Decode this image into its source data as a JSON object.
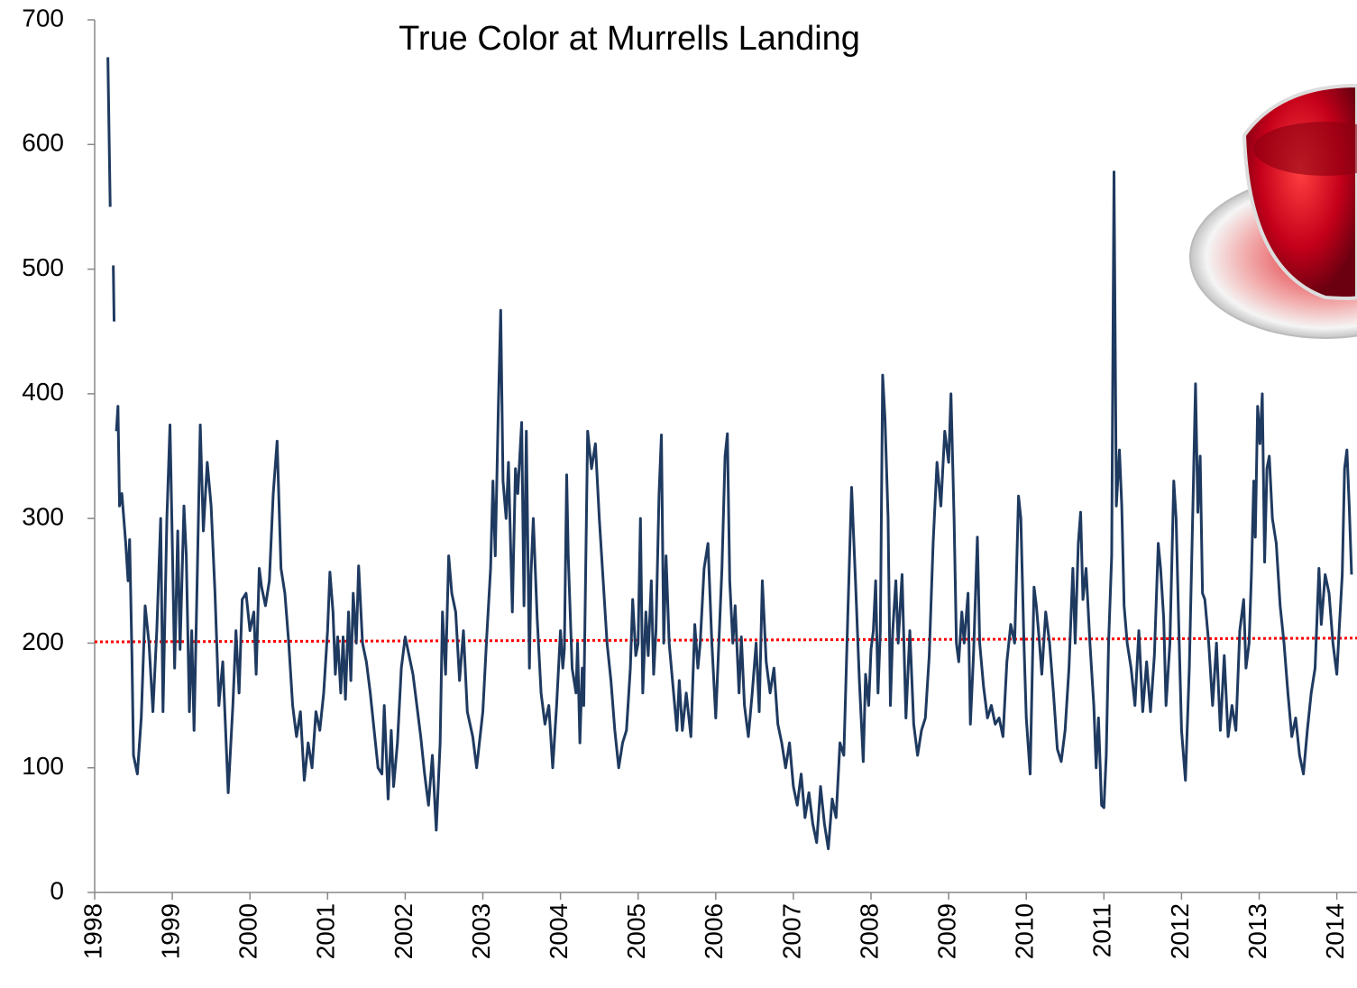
{
  "chart_data": {
    "type": "line",
    "title": "True Color at Murrells Landing",
    "x": [
      1998.17,
      1998.18,
      1998.2,
      1998.22,
      1998.24,
      1998.25,
      1998.26,
      1998.28,
      1998.3,
      1998.32,
      1998.35,
      1998.4,
      1998.43,
      1998.45,
      1998.48,
      1998.5,
      1998.55,
      1998.6,
      1998.65,
      1998.7,
      1998.75,
      1998.8,
      1998.85,
      1998.88,
      1998.93,
      1998.97,
      1999.0,
      1999.03,
      1999.07,
      1999.1,
      1999.15,
      1999.18,
      1999.22,
      1999.25,
      1999.28,
      1999.32,
      1999.36,
      1999.4,
      1999.45,
      1999.5,
      1999.55,
      1999.6,
      1999.65,
      1999.68,
      1999.72,
      1999.78,
      1999.82,
      1999.86,
      1999.9,
      1999.95,
      2000.0,
      2000.05,
      2000.08,
      2000.12,
      2000.15,
      2000.2,
      2000.25,
      2000.3,
      2000.35,
      2000.4,
      2000.45,
      2000.5,
      2000.55,
      2000.6,
      2000.65,
      2000.7,
      2000.75,
      2000.8,
      2000.85,
      2000.9,
      2000.95,
      2001.0,
      2001.03,
      2001.07,
      2001.1,
      2001.13,
      2001.17,
      2001.2,
      2001.23,
      2001.27,
      2001.3,
      2001.33,
      2001.37,
      2001.4,
      2001.45,
      2001.5,
      2001.55,
      2001.6,
      2001.65,
      2001.7,
      2001.73,
      2001.78,
      2001.82,
      2001.85,
      2001.9,
      2001.95,
      2002.0,
      2002.05,
      2002.1,
      2002.15,
      2002.2,
      2002.25,
      2002.3,
      2002.35,
      2002.4,
      2002.45,
      2002.48,
      2002.52,
      2002.56,
      2002.6,
      2002.65,
      2002.7,
      2002.75,
      2002.8,
      2002.87,
      2002.92,
      2003.0,
      2003.05,
      2003.1,
      2003.13,
      2003.16,
      2003.2,
      2003.23,
      2003.26,
      2003.3,
      2003.33,
      2003.38,
      2003.42,
      2003.45,
      2003.5,
      2003.53,
      2003.56,
      2003.6,
      2003.62,
      2003.65,
      2003.7,
      2003.75,
      2003.8,
      2003.85,
      2003.9,
      2003.95,
      2004.0,
      2004.03,
      2004.05,
      2004.08,
      2004.1,
      2004.15,
      2004.2,
      2004.22,
      2004.25,
      2004.28,
      2004.3,
      2004.35,
      2004.4,
      2004.45,
      2004.5,
      2004.55,
      2004.6,
      2004.65,
      2004.7,
      2004.75,
      2004.8,
      2004.85,
      2004.9,
      2004.93,
      2004.97,
      2005.0,
      2005.03,
      2005.06,
      2005.1,
      2005.13,
      2005.17,
      2005.2,
      2005.23,
      2005.27,
      2005.3,
      2005.33,
      2005.36,
      2005.4,
      2005.45,
      2005.5,
      2005.53,
      2005.57,
      2005.62,
      2005.68,
      2005.73,
      2005.77,
      2005.8,
      2005.85,
      2005.9,
      2005.95,
      2006.0,
      2006.04,
      2006.08,
      2006.12,
      2006.15,
      2006.18,
      2006.22,
      2006.25,
      2006.3,
      2006.33,
      2006.37,
      2006.42,
      2006.47,
      2006.52,
      2006.56,
      2006.6,
      2006.65,
      2006.7,
      2006.75,
      2006.8,
      2006.85,
      2006.9,
      2006.95,
      2007.0,
      2007.05,
      2007.1,
      2007.15,
      2007.2,
      2007.25,
      2007.3,
      2007.35,
      2007.4,
      2007.45,
      2007.5,
      2007.55,
      2007.6,
      2007.65,
      2007.7,
      2007.75,
      2007.8,
      2007.85,
      2007.9,
      2007.93,
      2007.97,
      2008.0,
      2008.03,
      2008.06,
      2008.09,
      2008.12,
      2008.15,
      2008.18,
      2008.22,
      2008.25,
      2008.28,
      2008.32,
      2008.35,
      2008.4,
      2008.45,
      2008.5,
      2008.55,
      2008.6,
      2008.65,
      2008.7,
      2008.75,
      2008.8,
      2008.85,
      2008.9,
      2008.95,
      2009.0,
      2009.03,
      2009.07,
      2009.1,
      2009.13,
      2009.17,
      2009.2,
      2009.25,
      2009.28,
      2009.32,
      2009.37,
      2009.4,
      2009.45,
      2009.5,
      2009.55,
      2009.6,
      2009.65,
      2009.7,
      2009.75,
      2009.8,
      2009.85,
      2009.9,
      2009.93,
      2009.97,
      2010.0,
      2010.05,
      2010.1,
      2010.13,
      2010.17,
      2010.2,
      2010.25,
      2010.3,
      2010.35,
      2010.4,
      2010.45,
      2010.5,
      2010.55,
      2010.6,
      2010.63,
      2010.67,
      2010.7,
      2010.73,
      2010.77,
      2010.82,
      2010.87,
      2010.9,
      2010.93,
      2010.97,
      2011.0,
      2011.03,
      2011.06,
      2011.1,
      2011.13,
      2011.16,
      2011.2,
      2011.23,
      2011.26,
      2011.3,
      2011.35,
      2011.4,
      2011.45,
      2011.5,
      2011.55,
      2011.6,
      2011.65,
      2011.7,
      2011.73,
      2011.77,
      2011.8,
      2011.85,
      2011.9,
      2011.93,
      2011.97,
      2012.0,
      2012.05,
      2012.1,
      2012.15,
      2012.18,
      2012.21,
      2012.24,
      2012.27,
      2012.3,
      2012.35,
      2012.4,
      2012.45,
      2012.5,
      2012.55,
      2012.6,
      2012.65,
      2012.7,
      2012.75,
      2012.8,
      2012.83,
      2012.87,
      2012.9,
      2012.93,
      2012.95,
      2012.98,
      2013.01,
      2013.04,
      2013.07,
      2013.1,
      2013.13,
      2013.17,
      2013.22,
      2013.27,
      2013.32,
      2013.37,
      2013.42,
      2013.47,
      2013.52,
      2013.57,
      2013.62,
      2013.67,
      2013.72,
      2013.77,
      2013.8,
      2013.85,
      2013.9,
      2013.95,
      2014.0,
      2014.03,
      2014.07,
      2014.1,
      2014.13,
      2014.16,
      2014.19
    ],
    "series": [
      {
        "color": "#1f3a60",
        "values": [
          670,
          630,
          550,
          null,
          503,
          458,
          null,
          370,
          390,
          310,
          320,
          280,
          250,
          283,
          190,
          110,
          95,
          140,
          230,
          200,
          145,
          210,
          300,
          145,
          300,
          375,
          280,
          180,
          290,
          195,
          310,
          270,
          145,
          210,
          130,
          250,
          375,
          290,
          345,
          310,
          240,
          150,
          185,
          140,
          80,
          150,
          210,
          160,
          235,
          240,
          210,
          225,
          175,
          260,
          245,
          230,
          250,
          320,
          362,
          260,
          240,
          200,
          150,
          125,
          145,
          90,
          120,
          100,
          145,
          130,
          160,
          210,
          257,
          225,
          175,
          205,
          160,
          205,
          155,
          225,
          170,
          240,
          200,
          262,
          200,
          185,
          160,
          130,
          100,
          95,
          150,
          75,
          130,
          85,
          120,
          180,
          205,
          190,
          175,
          150,
          125,
          95,
          70,
          110,
          50,
          120,
          225,
          175,
          270,
          240,
          225,
          170,
          210,
          145,
          125,
          100,
          145,
          205,
          260,
          330,
          270,
          390,
          467,
          330,
          300,
          345,
          225,
          340,
          320,
          377,
          230,
          370,
          180,
          255,
          300,
          220,
          160,
          135,
          150,
          100,
          150,
          210,
          180,
          195,
          335,
          270,
          180,
          160,
          200,
          120,
          180,
          150,
          370,
          340,
          360,
          300,
          250,
          200,
          170,
          130,
          100,
          120,
          130,
          180,
          235,
          190,
          200,
          300,
          160,
          225,
          190,
          250,
          175,
          210,
          320,
          367,
          200,
          270,
          200,
          165,
          130,
          170,
          130,
          160,
          125,
          215,
          180,
          200,
          260,
          280,
          200,
          140,
          200,
          260,
          350,
          368,
          250,
          200,
          230,
          160,
          205,
          150,
          125,
          160,
          200,
          145,
          250,
          185,
          160,
          180,
          135,
          120,
          100,
          120,
          85,
          70,
          95,
          60,
          80,
          55,
          40,
          85,
          55,
          35,
          75,
          60,
          120,
          110,
          220,
          325,
          250,
          170,
          105,
          175,
          150,
          195,
          210,
          250,
          160,
          210,
          415,
          380,
          300,
          150,
          210,
          250,
          200,
          255,
          140,
          210,
          135,
          110,
          130,
          140,
          190,
          280,
          345,
          310,
          370,
          345,
          400,
          300,
          200,
          185,
          225,
          200,
          240,
          135,
          190,
          285,
          200,
          165,
          140,
          150,
          135,
          140,
          125,
          185,
          215,
          200,
          318,
          300,
          200,
          140,
          95,
          245,
          230,
          200,
          175,
          225,
          200,
          160,
          115,
          105,
          130,
          180,
          260,
          200,
          280,
          305,
          235,
          260,
          200,
          150,
          100,
          140,
          70,
          68,
          110,
          200,
          270,
          578,
          310,
          355,
          310,
          230,
          200,
          180,
          150,
          210,
          145,
          185,
          145,
          190,
          280,
          260,
          220,
          150,
          200,
          330,
          300,
          200,
          130,
          90,
          180,
          320,
          408,
          305,
          350,
          240,
          235,
          200,
          150,
          200,
          130,
          190,
          125,
          150,
          130,
          210,
          235,
          180,
          200,
          255,
          330,
          285,
          390,
          360,
          400,
          265,
          340,
          350,
          300,
          280,
          230,
          200,
          160,
          125,
          140,
          110,
          95,
          130,
          160,
          180,
          260,
          215,
          255,
          240,
          200,
          175,
          210,
          255,
          340,
          355,
          310,
          255
        ]
      }
    ],
    "trend": {
      "x": [
        1998,
        2014.26
      ],
      "values": [
        201,
        204
      ],
      "color": "#ff0000"
    },
    "xlim": [
      1998,
      2014.26
    ],
    "ylim": [
      0,
      700
    ],
    "xticks": [
      1998,
      1999,
      2000,
      2001,
      2002,
      2003,
      2004,
      2005,
      2006,
      2007,
      2008,
      2009,
      2010,
      2011,
      2012,
      2013,
      2014
    ],
    "yticks": [
      0,
      100,
      200,
      300,
      400,
      500,
      600,
      700
    ],
    "grid": false
  }
}
